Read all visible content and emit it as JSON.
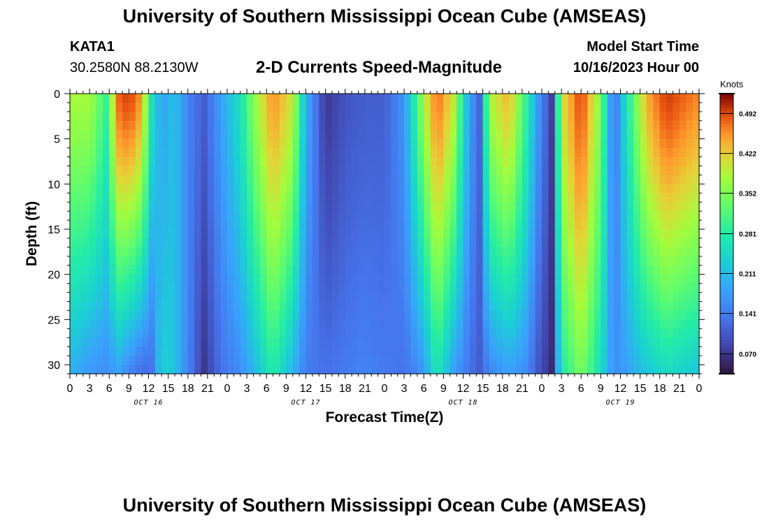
{
  "header": {
    "title": "University of Southern Mississippi Ocean Cube (AMSEAS)",
    "station": "KATA1",
    "location": "30.2580N  88.2130W",
    "model_start_label": "Model Start Time",
    "model_start_value": "10/16/2023 Hour 00"
  },
  "footer": {
    "title": "University of Southern Mississippi Ocean Cube (AMSEAS)"
  },
  "chart_data": {
    "type": "heatmap",
    "title": "2-D Currents Speed-Magnitude",
    "xlabel": "Forecast Time(Z)",
    "ylabel": "Depth (ft)",
    "x_range_hours": [
      0,
      96
    ],
    "ylim": [
      0,
      31
    ],
    "y_ticks": [
      0,
      5,
      10,
      15,
      20,
      25,
      30
    ],
    "x_ticks": [
      "0",
      "3",
      "6",
      "9",
      "12",
      "15",
      "18",
      "21",
      "0",
      "3",
      "6",
      "9",
      "12",
      "15",
      "18",
      "21",
      "0",
      "3",
      "6",
      "9",
      "12",
      "15",
      "18",
      "21",
      "0",
      "3",
      "6",
      "9",
      "12",
      "15",
      "18",
      "21",
      "0"
    ],
    "day_labels": [
      {
        "hour": 12,
        "label": "OCT 16"
      },
      {
        "hour": 36,
        "label": "OCT 17"
      },
      {
        "hour": 60,
        "label": "OCT 18"
      },
      {
        "hour": 84,
        "label": "OCT 19"
      }
    ],
    "colorbar": {
      "unit": "Knots",
      "min": 0.035,
      "max": 0.527,
      "ticks": [
        "0.070",
        "0.141",
        "0.211",
        "0.281",
        "0.352",
        "0.422",
        "0.492"
      ]
    },
    "speed_knots_by_hour": [
      {
        "hour": 0,
        "surface": 0.38,
        "bottom": 0.2
      },
      {
        "hour": 3,
        "surface": 0.38,
        "bottom": 0.17
      },
      {
        "hour": 5.5,
        "surface": 0.3,
        "bottom": 0.16
      },
      {
        "hour": 7.5,
        "surface": 0.48,
        "bottom": 0.18
      },
      {
        "hour": 9,
        "surface": 0.5,
        "bottom": 0.15
      },
      {
        "hour": 11,
        "surface": 0.45,
        "bottom": 0.12
      },
      {
        "hour": 12.5,
        "surface": 0.26,
        "bottom": 0.13
      },
      {
        "hour": 14,
        "surface": 0.18,
        "bottom": 0.24
      },
      {
        "hour": 16,
        "surface": 0.22,
        "bottom": 0.22
      },
      {
        "hour": 18,
        "surface": 0.15,
        "bottom": 0.15
      },
      {
        "hour": 20.5,
        "surface": 0.11,
        "bottom": 0.07
      },
      {
        "hour": 23,
        "surface": 0.18,
        "bottom": 0.13
      },
      {
        "hour": 26,
        "surface": 0.26,
        "bottom": 0.16
      },
      {
        "hour": 28,
        "surface": 0.36,
        "bottom": 0.2
      },
      {
        "hour": 31,
        "surface": 0.46,
        "bottom": 0.28
      },
      {
        "hour": 34,
        "surface": 0.4,
        "bottom": 0.2
      },
      {
        "hour": 36,
        "surface": 0.2,
        "bottom": 0.14
      },
      {
        "hour": 39,
        "surface": 0.07,
        "bottom": 0.13
      },
      {
        "hour": 42,
        "surface": 0.1,
        "bottom": 0.14
      },
      {
        "hour": 45,
        "surface": 0.11,
        "bottom": 0.15
      },
      {
        "hour": 48,
        "surface": 0.11,
        "bottom": 0.14
      },
      {
        "hour": 51,
        "surface": 0.17,
        "bottom": 0.13
      },
      {
        "hour": 54,
        "surface": 0.38,
        "bottom": 0.17
      },
      {
        "hour": 56,
        "surface": 0.48,
        "bottom": 0.27
      },
      {
        "hour": 58.5,
        "surface": 0.4,
        "bottom": 0.18
      },
      {
        "hour": 61,
        "surface": 0.18,
        "bottom": 0.13
      },
      {
        "hour": 62.5,
        "surface": 0.12,
        "bottom": 0.11
      },
      {
        "hour": 64,
        "surface": 0.38,
        "bottom": 0.15
      },
      {
        "hour": 67,
        "surface": 0.44,
        "bottom": 0.18
      },
      {
        "hour": 69.5,
        "surface": 0.3,
        "bottom": 0.16
      },
      {
        "hour": 71.5,
        "surface": 0.17,
        "bottom": 0.1
      },
      {
        "hour": 73.5,
        "surface": 0.08,
        "bottom": 0.06
      },
      {
        "hour": 75,
        "surface": 0.4,
        "bottom": 0.27
      },
      {
        "hour": 78,
        "surface": 0.5,
        "bottom": 0.35
      },
      {
        "hour": 81,
        "surface": 0.35,
        "bottom": 0.25
      },
      {
        "hour": 83,
        "surface": 0.12,
        "bottom": 0.16
      },
      {
        "hour": 85,
        "surface": 0.27,
        "bottom": 0.18
      },
      {
        "hour": 88,
        "surface": 0.44,
        "bottom": 0.22
      },
      {
        "hour": 91,
        "surface": 0.5,
        "bottom": 0.25
      },
      {
        "hour": 96,
        "surface": 0.46,
        "bottom": 0.22
      }
    ]
  }
}
